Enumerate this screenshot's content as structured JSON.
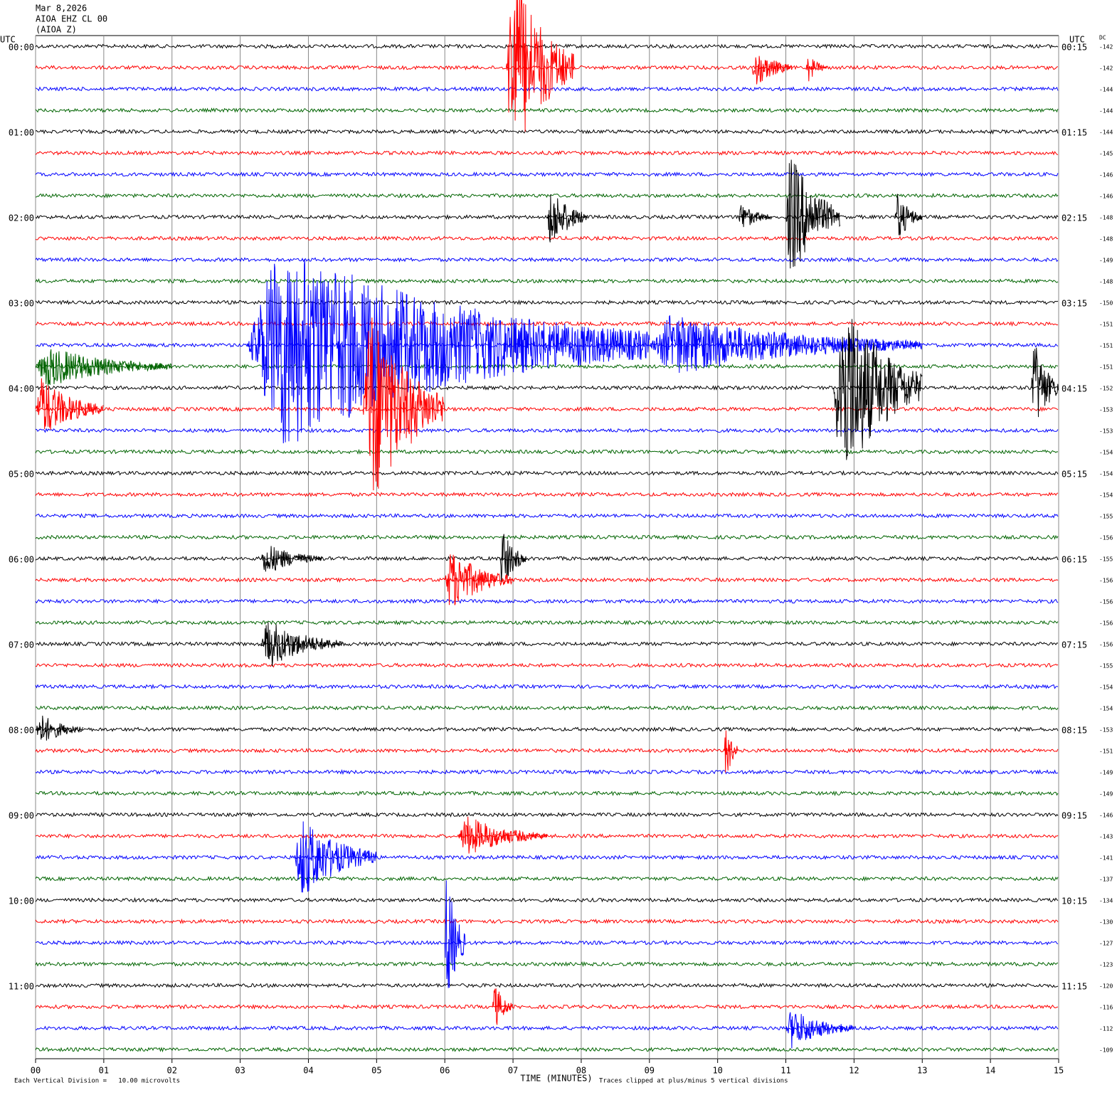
{
  "chart_data": {
    "type": "helicorder",
    "header": [
      "Mar 8,2026",
      "AIOA EHZ CL 00",
      "(AIOA Z)"
    ],
    "left_axis_label": "UTC",
    "right_axis_label": "UTC",
    "dc_label": "DC",
    "xlabel": "TIME (MINUTES)",
    "scale_note": "Each Vertical Division =   10.00 microvolts",
    "clip_note": "Traces clipped at plus/minus 5 vertical divisions",
    "xlim": [
      0,
      15
    ],
    "xticks": [
      {
        "value": 0,
        "label": "00"
      },
      {
        "value": 1,
        "label": "01"
      },
      {
        "value": 2,
        "label": "02"
      },
      {
        "value": 3,
        "label": "03"
      },
      {
        "value": 4,
        "label": "04"
      },
      {
        "value": 5,
        "label": "05"
      },
      {
        "value": 6,
        "label": "06"
      },
      {
        "value": 7,
        "label": "07"
      },
      {
        "value": 8,
        "label": "08"
      },
      {
        "value": 9,
        "label": "09"
      },
      {
        "value": 10,
        "label": "10"
      },
      {
        "value": 11,
        "label": "11"
      },
      {
        "value": 12,
        "label": "12"
      },
      {
        "value": 13,
        "label": "13"
      },
      {
        "value": 14,
        "label": "14"
      },
      {
        "value": 15,
        "label": "15"
      }
    ],
    "grid": true,
    "colors": [
      "#000000",
      "#ff0000",
      "#0000ff",
      "#006400"
    ],
    "left_labels": [
      "00:00",
      "01:00",
      "02:00",
      "03:00",
      "04:00",
      "05:00",
      "06:00",
      "07:00",
      "08:00",
      "09:00",
      "10:00",
      "11:00"
    ],
    "right_labels": [
      "00:15",
      "01:15",
      "02:15",
      "03:15",
      "04:15",
      "05:15",
      "06:15",
      "07:15",
      "08:15",
      "09:15",
      "10:15",
      "11:15"
    ],
    "dc": [
      -142,
      -142,
      -144,
      -144,
      -144,
      -145,
      -146,
      -146,
      -148,
      -148,
      -149,
      -148,
      -150,
      -151,
      -151,
      -151,
      -152,
      -153,
      -153,
      -154,
      -154,
      -154,
      -155,
      -156,
      -155,
      -156,
      -156,
      -156,
      -156,
      -155,
      -154,
      -154,
      -153,
      -151,
      -149,
      -149,
      -146,
      -143,
      -141,
      -137,
      -134,
      -130,
      -127,
      -123,
      -120,
      -116,
      -112,
      -109
    ],
    "clip": 5,
    "events": [
      {
        "row": 1,
        "start": 6.9,
        "end": 7.9,
        "amp": 5
      },
      {
        "row": 1,
        "start": 10.5,
        "end": 11.1,
        "amp": 1
      },
      {
        "row": 1,
        "start": 11.3,
        "end": 11.6,
        "amp": 0.7
      },
      {
        "row": 8,
        "start": 7.5,
        "end": 8.1,
        "amp": 1.5
      },
      {
        "row": 8,
        "start": 10.3,
        "end": 10.8,
        "amp": 0.7
      },
      {
        "row": 8,
        "start": 11.0,
        "end": 11.8,
        "amp": 3.2
      },
      {
        "row": 8,
        "start": 12.6,
        "end": 13.0,
        "amp": 1.2
      },
      {
        "row": 14,
        "start": 3.1,
        "end": 9.0,
        "amp": 5
      },
      {
        "row": 14,
        "start": 9.0,
        "end": 13.0,
        "amp": 1.5
      },
      {
        "row": 15,
        "start": 0,
        "end": 2,
        "amp": 1
      },
      {
        "row": 16,
        "start": 11.7,
        "end": 13.0,
        "amp": 5
      },
      {
        "row": 16,
        "start": 14.6,
        "end": 15,
        "amp": 2.5
      },
      {
        "row": 17,
        "start": 0,
        "end": 1,
        "amp": 1.5
      },
      {
        "row": 17,
        "start": 4.8,
        "end": 6.0,
        "amp": 5
      },
      {
        "row": 24,
        "start": 3.3,
        "end": 4.2,
        "amp": 0.8
      },
      {
        "row": 24,
        "start": 6.8,
        "end": 7.2,
        "amp": 1.5
      },
      {
        "row": 25,
        "start": 6.0,
        "end": 7.0,
        "amp": 1.5
      },
      {
        "row": 28,
        "start": 3.3,
        "end": 4.5,
        "amp": 1.2
      },
      {
        "row": 32,
        "start": 0,
        "end": 0.7,
        "amp": 0.8
      },
      {
        "row": 33,
        "start": 10.1,
        "end": 10.3,
        "amp": 1.5
      },
      {
        "row": 37,
        "start": 6.2,
        "end": 7.5,
        "amp": 1
      },
      {
        "row": 38,
        "start": 3.8,
        "end": 5.0,
        "amp": 2
      },
      {
        "row": 42,
        "start": 6.0,
        "end": 6.3,
        "amp": 3.5
      },
      {
        "row": 45,
        "start": 6.7,
        "end": 7.0,
        "amp": 1.2
      },
      {
        "row": 46,
        "start": 11.0,
        "end": 12.0,
        "amp": 1
      }
    ]
  }
}
